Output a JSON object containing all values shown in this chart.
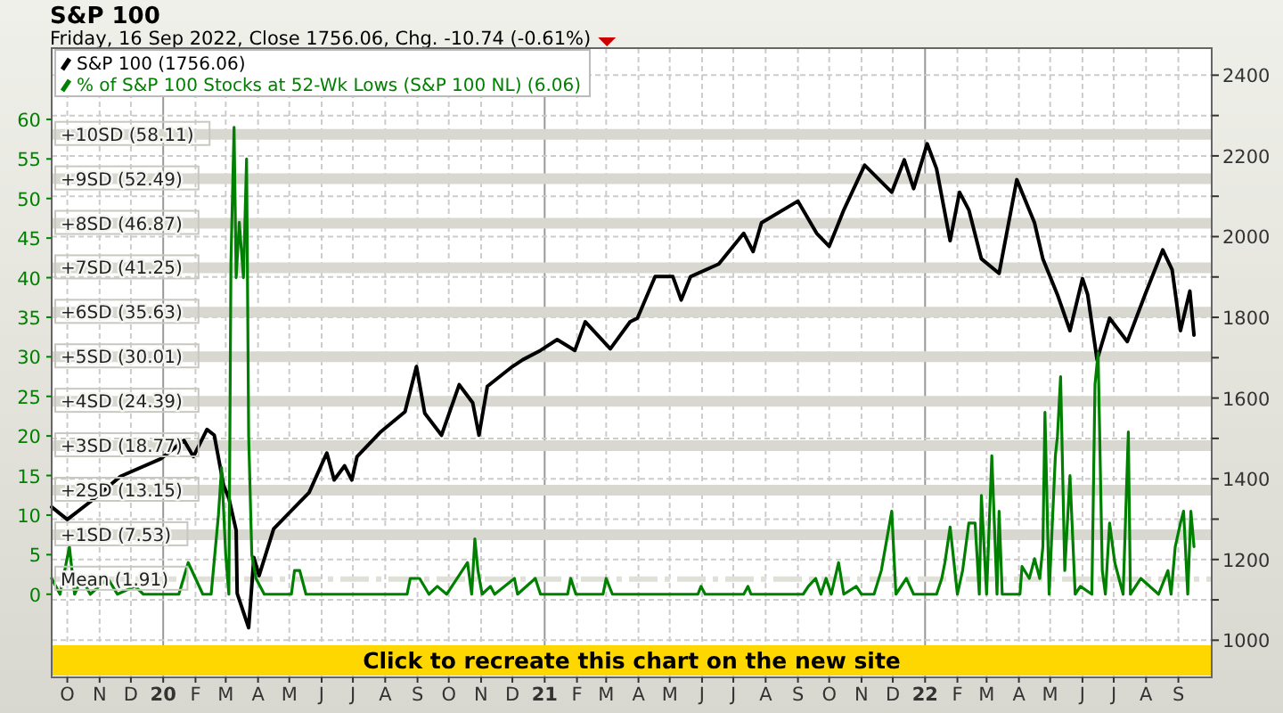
{
  "chart_data": {
    "type": "line",
    "title": "S&P 100",
    "subtitle": "Friday, 16 Sep 2022, Close 1756.06, Chg. -10.74 (-0.61%)",
    "annotations": [
      "Click to recreate this chart on the new site"
    ],
    "legend": "top left",
    "grid": true,
    "marker": "none",
    "xlim": [
      "2019-09-16",
      "2022-10-03"
    ],
    "xticks": [
      {
        "value": "2019-10-01",
        "label": "O"
      },
      {
        "value": "2019-11-01",
        "label": "N"
      },
      {
        "value": "2019-12-01",
        "label": "D"
      },
      {
        "value": "2020-01-01",
        "label": "20"
      },
      {
        "value": "2020-02-01",
        "label": "F"
      },
      {
        "value": "2020-03-01",
        "label": "M"
      },
      {
        "value": "2020-04-01",
        "label": "A"
      },
      {
        "value": "2020-05-01",
        "label": "M"
      },
      {
        "value": "2020-06-01",
        "label": "J"
      },
      {
        "value": "2020-07-01",
        "label": "J"
      },
      {
        "value": "2020-08-01",
        "label": "A"
      },
      {
        "value": "2020-09-01",
        "label": "S"
      },
      {
        "value": "2020-10-01",
        "label": "O"
      },
      {
        "value": "2020-11-01",
        "label": "N"
      },
      {
        "value": "2020-12-01",
        "label": "D"
      },
      {
        "value": "2021-01-01",
        "label": "21"
      },
      {
        "value": "2021-02-01",
        "label": "F"
      },
      {
        "value": "2021-03-01",
        "label": "M"
      },
      {
        "value": "2021-04-01",
        "label": "A"
      },
      {
        "value": "2021-05-01",
        "label": "M"
      },
      {
        "value": "2021-06-01",
        "label": "J"
      },
      {
        "value": "2021-07-01",
        "label": "J"
      },
      {
        "value": "2021-08-01",
        "label": "A"
      },
      {
        "value": "2021-09-01",
        "label": "S"
      },
      {
        "value": "2021-10-01",
        "label": "O"
      },
      {
        "value": "2021-11-01",
        "label": "N"
      },
      {
        "value": "2021-12-01",
        "label": "D"
      },
      {
        "value": "2022-01-01",
        "label": "22"
      },
      {
        "value": "2022-02-01",
        "label": "F"
      },
      {
        "value": "2022-03-01",
        "label": "M"
      },
      {
        "value": "2022-04-01",
        "label": "A"
      },
      {
        "value": "2022-05-01",
        "label": "M"
      },
      {
        "value": "2022-06-01",
        "label": "J"
      },
      {
        "value": "2022-07-01",
        "label": "J"
      },
      {
        "value": "2022-08-01",
        "label": "A"
      },
      {
        "value": "2022-09-01",
        "label": "S"
      }
    ],
    "ylim": [
      -10.5,
      69
    ],
    "yticks": [
      0,
      5,
      10,
      15,
      20,
      25,
      30,
      35,
      40,
      45,
      50,
      55,
      60
    ],
    "y2lim": [
      908,
      2467
    ],
    "y2ticks": [
      1000,
      {
        "value": 1100,
        "label": null
      },
      1200,
      {
        "value": 1300,
        "label": null
      },
      1400,
      {
        "value": 1500,
        "label": null
      },
      1600,
      {
        "value": 1700,
        "label": null
      },
      1800,
      {
        "value": 1900,
        "label": null
      },
      2000,
      {
        "value": 2100,
        "label": null
      },
      2200,
      {
        "value": 2300,
        "label": null
      },
      2400
    ],
    "ref_lines": [
      {
        "axis": "y",
        "value": 58.11,
        "label": "+10SD (58.11)",
        "color": "#d8d8d0"
      },
      {
        "axis": "y",
        "value": 52.49,
        "label": "+9SD (52.49)",
        "color": "#d8d8d0"
      },
      {
        "axis": "y",
        "value": 46.87,
        "label": "+8SD (46.87)",
        "color": "#d8d8d0"
      },
      {
        "axis": "y",
        "value": 41.25,
        "label": "+7SD (41.25)",
        "color": "#d8d8d0"
      },
      {
        "axis": "y",
        "value": 35.63,
        "label": "+6SD (35.63)",
        "color": "#d8d8d0"
      },
      {
        "axis": "y",
        "value": 30.01,
        "label": "+5SD (30.01)",
        "color": "#d8d8d0"
      },
      {
        "axis": "y",
        "value": 24.39,
        "label": "+4SD (24.39)",
        "color": "#d8d8d0"
      },
      {
        "axis": "y",
        "value": 18.77,
        "label": "+3SD (18.77)",
        "color": "#d8d8d0"
      },
      {
        "axis": "y",
        "value": 13.15,
        "label": "+2SD (13.15)",
        "color": "#d8d8d0"
      },
      {
        "axis": "y",
        "value": 7.53,
        "label": "+1SD (7.53)",
        "color": "#d8d8d0"
      },
      {
        "axis": "y",
        "value": 1.91,
        "label": "Mean (1.91)",
        "color": "#e0e0d8",
        "line_style": "dashed"
      }
    ],
    "series": [
      {
        "name": "S&P 100 (1756.06)",
        "color": "#000000",
        "axis": "y2",
        "x": [
          "2019-09-16",
          "2019-10-01",
          "2019-10-23",
          "2019-11-21",
          "2019-12-30",
          "2020-01-21",
          "2020-01-30",
          "2020-02-12",
          "2020-02-19",
          "2020-02-28",
          "2020-03-04",
          "2020-03-11",
          "2020-03-12",
          "2020-03-23",
          "2020-03-28",
          "2020-04-02",
          "2020-04-16",
          "2020-05-03",
          "2020-05-20",
          "2020-06-06",
          "2020-06-13",
          "2020-06-23",
          "2020-06-30",
          "2020-07-05",
          "2020-07-28",
          "2020-08-20",
          "2020-08-31",
          "2020-09-08",
          "2020-09-24",
          "2020-10-11",
          "2020-10-24",
          "2020-10-30",
          "2020-11-07",
          "2020-12-01",
          "2020-12-11",
          "2020-12-28",
          "2021-01-13",
          "2021-01-30",
          "2021-02-09",
          "2021-03-05",
          "2021-03-24",
          "2021-03-31",
          "2021-04-17",
          "2021-05-04",
          "2021-05-12",
          "2021-05-21",
          "2021-06-17",
          "2021-07-11",
          "2021-07-20",
          "2021-07-28",
          "2021-09-01",
          "2021-09-19",
          "2021-10-01",
          "2021-10-15",
          "2021-11-04",
          "2021-11-30",
          "2021-12-12",
          "2021-12-21",
          "2022-01-03",
          "2022-01-12",
          "2022-01-25",
          "2022-02-03",
          "2022-02-12",
          "2022-02-24",
          "2022-03-13",
          "2022-03-30",
          "2022-04-16",
          "2022-04-24",
          "2022-05-08",
          "2022-05-20",
          "2022-06-01",
          "2022-06-06",
          "2022-06-15",
          "2022-06-27",
          "2022-07-14",
          "2022-07-31",
          "2022-08-17",
          "2022-08-26",
          "2022-09-03",
          "2022-09-12",
          "2022-09-16"
        ],
        "values": [
          1330,
          1299,
          1343,
          1406,
          1450,
          1495,
          1455,
          1522,
          1508,
          1383,
          1352,
          1272,
          1116,
          1031,
          1205,
          1160,
          1276,
          1321,
          1366,
          1464,
          1397,
          1432,
          1397,
          1455,
          1517,
          1566,
          1678,
          1562,
          1508,
          1633,
          1588,
          1508,
          1629,
          1678,
          1695,
          1718,
          1745,
          1718,
          1789,
          1722,
          1789,
          1798,
          1901,
          1901,
          1843,
          1901,
          1932,
          2008,
          1963,
          2034,
          2088,
          2008,
          1976,
          2066,
          2177,
          2110,
          2190,
          2119,
          2230,
          2168,
          1990,
          2110,
          2066,
          1945,
          1909,
          2141,
          2034,
          1945,
          1856,
          1767,
          1896,
          1856,
          1695,
          1798,
          1740,
          1856,
          1967,
          1918,
          1767,
          1865,
          1756
        ]
      },
      {
        "name": "% of S&P 100 Stocks at 52-Wk Lows (S&P 100 NL) (6.06)",
        "color": "#008000",
        "x": [
          "2019-09-16",
          "2019-09-24",
          "2019-10-03",
          "2019-10-08",
          "2019-10-15",
          "2019-10-23",
          "2019-11-09",
          "2019-11-18",
          "2019-12-05",
          "2019-12-13",
          "2020-01-16",
          "2020-01-25",
          "2020-02-01",
          "2020-02-08",
          "2020-02-16",
          "2020-02-23",
          "2020-02-26",
          "2020-03-01",
          "2020-03-04",
          "2020-03-06",
          "2020-03-09",
          "2020-03-11",
          "2020-03-14",
          "2020-03-18",
          "2020-03-21",
          "2020-03-23",
          "2020-03-26",
          "2020-03-30",
          "2020-04-07",
          "2020-05-03",
          "2020-05-06",
          "2020-05-11",
          "2020-05-17",
          "2020-08-22",
          "2020-08-25",
          "2020-09-03",
          "2020-09-12",
          "2020-09-20",
          "2020-09-29",
          "2020-10-19",
          "2020-10-23",
          "2020-10-26",
          "2020-10-29",
          "2020-11-02",
          "2020-11-10",
          "2020-11-14",
          "2020-12-03",
          "2020-12-06",
          "2020-12-23",
          "2020-12-28",
          "2021-01-23",
          "2021-01-26",
          "2021-01-31",
          "2021-02-26",
          "2021-03-01",
          "2021-03-07",
          "2021-05-28",
          "2021-05-31",
          "2021-06-04",
          "2021-07-11",
          "2021-07-15",
          "2021-07-18",
          "2021-09-06",
          "2021-09-11",
          "2021-09-18",
          "2021-09-23",
          "2021-09-28",
          "2021-10-03",
          "2021-10-10",
          "2021-10-15",
          "2021-10-27",
          "2021-11-01",
          "2021-11-13",
          "2021-11-20",
          "2021-11-30",
          "2021-12-04",
          "2021-12-14",
          "2021-12-21",
          "2022-01-12",
          "2022-01-17",
          "2022-01-20",
          "2022-01-25",
          "2022-02-01",
          "2022-02-06",
          "2022-02-12",
          "2022-02-18",
          "2022-02-22",
          "2022-02-24",
          "2022-03-01",
          "2022-03-06",
          "2022-03-11",
          "2022-03-13",
          "2022-03-16",
          "2022-04-02",
          "2022-04-04",
          "2022-04-11",
          "2022-04-16",
          "2022-04-21",
          "2022-04-24",
          "2022-04-26",
          "2022-04-30",
          "2022-05-06",
          "2022-05-08",
          "2022-05-11",
          "2022-05-15",
          "2022-05-20",
          "2022-05-25",
          "2022-05-30",
          "2022-06-10",
          "2022-06-13",
          "2022-06-16",
          "2022-06-20",
          "2022-06-23",
          "2022-06-27",
          "2022-07-02",
          "2022-07-10",
          "2022-07-15",
          "2022-07-17",
          "2022-07-27",
          "2022-08-13",
          "2022-08-22",
          "2022-08-25",
          "2022-08-29",
          "2022-09-03",
          "2022-09-06",
          "2022-09-10",
          "2022-09-13",
          "2022-09-16"
        ],
        "values": [
          2,
          0,
          6,
          0,
          2,
          0,
          2,
          0,
          1,
          0,
          0,
          4,
          2,
          0,
          0,
          10,
          16,
          5,
          0,
          42,
          59,
          40,
          47,
          40,
          55,
          20,
          5,
          2,
          0,
          0,
          3,
          3,
          0,
          0,
          2,
          2,
          0,
          1,
          0,
          4,
          0,
          7,
          3,
          0,
          1,
          0,
          2,
          0,
          2,
          0,
          0,
          2,
          0,
          0,
          2,
          0,
          0,
          1,
          0,
          0,
          1,
          0,
          0,
          1,
          2,
          0,
          2,
          0,
          4,
          0,
          1,
          0,
          0,
          3,
          10.5,
          0,
          2,
          0,
          0,
          2,
          4,
          8.5,
          0,
          3,
          9,
          9,
          0,
          12.5,
          0,
          17.5,
          0,
          10.5,
          0,
          0,
          3.5,
          2,
          4.5,
          2,
          6,
          23,
          0,
          17.5,
          20,
          27.5,
          3,
          15,
          0,
          1,
          0,
          26.5,
          30.5,
          3,
          0,
          9,
          4,
          0,
          20.5,
          0,
          2,
          0,
          3,
          0,
          6,
          9,
          10.5,
          0,
          10.5,
          6
        ]
      }
    ]
  }
}
